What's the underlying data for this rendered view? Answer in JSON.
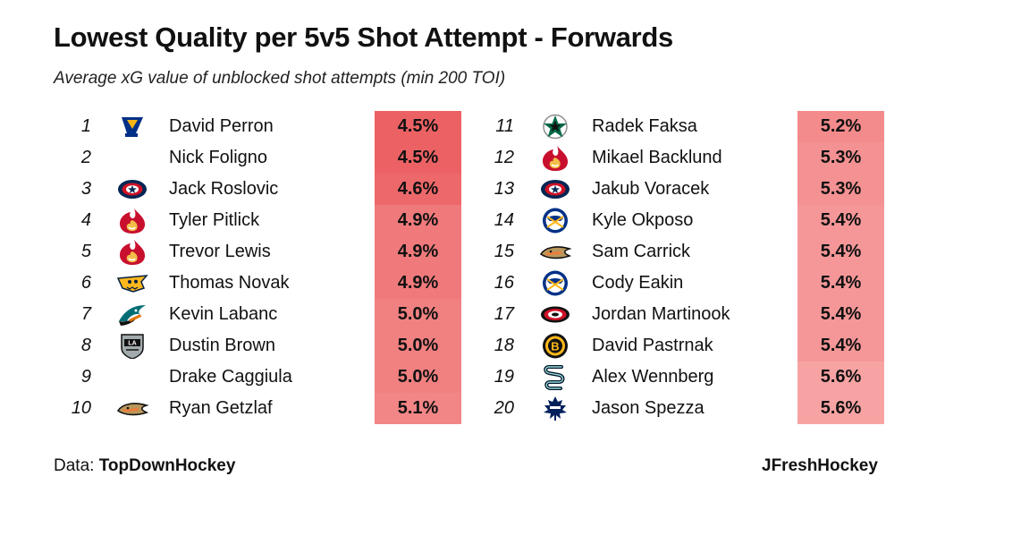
{
  "page": {
    "title": "Lowest Quality per 5v5 Shot Attempt - Forwards",
    "subtitle": "Average xG value of unblocked shot attempts (min 200 TOI)",
    "source_label": "Data:",
    "source_name": "TopDownHockey",
    "credit": "JFreshHockey"
  },
  "colors": {
    "column_background": "#f7a3a3",
    "cell_scale_low": "#ec6264",
    "cell_scale_high": "#f7a3a3"
  },
  "chart_data": {
    "type": "table",
    "value_unit": "%",
    "color_scale": [
      4.5,
      5.6
    ],
    "rows": [
      {
        "rank": "1",
        "player": "David Perron",
        "team_logo": "blues-note-icon",
        "value": 4.5,
        "value_label": "4.5%"
      },
      {
        "rank": "2",
        "player": "Nick Foligno",
        "team_logo": "",
        "value": 4.5,
        "value_label": "4.5%"
      },
      {
        "rank": "3",
        "player": "Jack Roslovic",
        "team_logo": "blue-jackets-icon",
        "value": 4.6,
        "value_label": "4.6%"
      },
      {
        "rank": "4",
        "player": "Tyler Pitlick",
        "team_logo": "flames-icon",
        "value": 4.9,
        "value_label": "4.9%"
      },
      {
        "rank": "5",
        "player": "Trevor Lewis",
        "team_logo": "flames-icon",
        "value": 4.9,
        "value_label": "4.9%"
      },
      {
        "rank": "6",
        "player": "Thomas Novak",
        "team_logo": "predators-icon",
        "value": 4.9,
        "value_label": "4.9%"
      },
      {
        "rank": "7",
        "player": "Kevin Labanc",
        "team_logo": "sharks-icon",
        "value": 5.0,
        "value_label": "5.0%"
      },
      {
        "rank": "8",
        "player": "Dustin Brown",
        "team_logo": "kings-shield-icon",
        "value": 5.0,
        "value_label": "5.0%"
      },
      {
        "rank": "9",
        "player": "Drake Caggiula",
        "team_logo": "",
        "value": 5.0,
        "value_label": "5.0%"
      },
      {
        "rank": "10",
        "player": "Ryan Getzlaf",
        "team_logo": "ducks-icon",
        "value": 5.1,
        "value_label": "5.1%"
      },
      {
        "rank": "11",
        "player": "Radek Faksa",
        "team_logo": "stars-icon",
        "value": 5.2,
        "value_label": "5.2%"
      },
      {
        "rank": "12",
        "player": "Mikael Backlund",
        "team_logo": "flames-icon",
        "value": 5.3,
        "value_label": "5.3%"
      },
      {
        "rank": "13",
        "player": "Jakub Voracek",
        "team_logo": "blue-jackets-icon",
        "value": 5.3,
        "value_label": "5.3%"
      },
      {
        "rank": "14",
        "player": "Kyle Okposo",
        "team_logo": "sabres-icon",
        "value": 5.4,
        "value_label": "5.4%"
      },
      {
        "rank": "15",
        "player": "Sam Carrick",
        "team_logo": "ducks-icon",
        "value": 5.4,
        "value_label": "5.4%"
      },
      {
        "rank": "16",
        "player": "Cody Eakin",
        "team_logo": "sabres-icon",
        "value": 5.4,
        "value_label": "5.4%"
      },
      {
        "rank": "17",
        "player": "Jordan Martinook",
        "team_logo": "hurricanes-icon",
        "value": 5.4,
        "value_label": "5.4%"
      },
      {
        "rank": "18",
        "player": "David Pastrnak",
        "team_logo": "bruins-icon",
        "value": 5.4,
        "value_label": "5.4%"
      },
      {
        "rank": "19",
        "player": "Alex Wennberg",
        "team_logo": "kraken-icon",
        "value": 5.6,
        "value_label": "5.6%"
      },
      {
        "rank": "20",
        "player": "Jason Spezza",
        "team_logo": "maple-leafs-icon",
        "value": 5.6,
        "value_label": "5.6%"
      }
    ]
  }
}
